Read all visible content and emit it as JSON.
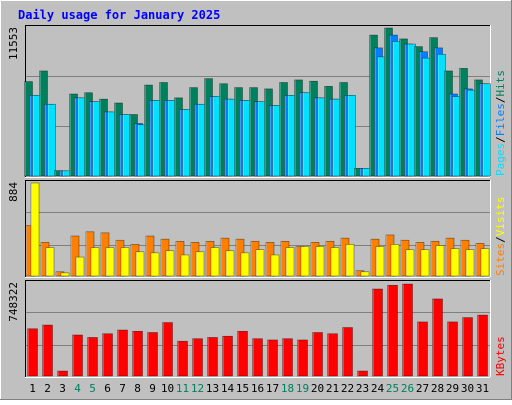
{
  "title": "Daily usage for January 2025",
  "colors": {
    "background": "#C0C0C0",
    "plot_bg": "#C0C0C0",
    "title": "#0000FF",
    "hits": "#00805C",
    "files": "#0080FF",
    "pages": "#00E0FF",
    "visits": "#FFFF00",
    "sites": "#FF8000",
    "kbytes": "#FF0000",
    "axis_label_default": "#000000",
    "axis_label_weekend": "#00805C"
  },
  "chart_data": [
    {
      "type": "bar",
      "name": "hits-files-pages",
      "scale_label": "11553",
      "ylim": [
        0,
        11553
      ],
      "categories": [
        "1",
        "2",
        "3",
        "4",
        "5",
        "6",
        "7",
        "8",
        "9",
        "10",
        "11",
        "12",
        "13",
        "14",
        "15",
        "16",
        "17",
        "18",
        "19",
        "20",
        "21",
        "22",
        "23",
        "24",
        "25",
        "26",
        "27",
        "28",
        "29",
        "30",
        "31"
      ],
      "weekend": [
        false,
        false,
        false,
        true,
        true,
        false,
        false,
        false,
        false,
        false,
        true,
        true,
        false,
        false,
        false,
        false,
        false,
        true,
        true,
        false,
        false,
        false,
        false,
        false,
        true,
        true,
        false,
        false,
        false,
        false,
        false
      ],
      "legend": [
        "Pages",
        "Files",
        "Hits"
      ],
      "series": [
        {
          "name": "Hits",
          "color_key": "hits",
          "values": [
            7370,
            8200,
            420,
            6400,
            6500,
            6000,
            5700,
            4800,
            7100,
            7300,
            6100,
            6900,
            7600,
            7200,
            6900,
            6900,
            6800,
            7300,
            7500,
            7400,
            7000,
            7300,
            600,
            11000,
            11553,
            10700,
            10100,
            10800,
            8200,
            8400,
            7500
          ]
        },
        {
          "name": "Files",
          "color_key": "files",
          "values": [
            6300,
            5600,
            400,
            6100,
            5800,
            5000,
            4800,
            4100,
            5900,
            5900,
            5200,
            5600,
            6200,
            6000,
            5900,
            5800,
            5500,
            6300,
            6500,
            6100,
            6000,
            6300,
            600,
            10000,
            11000,
            10300,
            9700,
            10000,
            6400,
            6800,
            7200
          ]
        },
        {
          "name": "Pages",
          "color_key": "pages",
          "values": [
            6300,
            5600,
            400,
            6100,
            5800,
            5000,
            4800,
            4000,
            5900,
            5900,
            5200,
            5600,
            6200,
            6000,
            5900,
            5800,
            5500,
            6300,
            6500,
            6100,
            6000,
            6300,
            600,
            9300,
            10500,
            10300,
            9200,
            9500,
            6200,
            6700,
            7200
          ]
        }
      ]
    },
    {
      "type": "bar",
      "name": "sites-visits",
      "scale_label": "884",
      "ylim": [
        0,
        884
      ],
      "legend": [
        "Sites",
        "Visits"
      ],
      "series": [
        {
          "name": "Sites",
          "color_key": "sites",
          "values": [
            480,
            320,
            40,
            380,
            420,
            410,
            340,
            300,
            380,
            350,
            330,
            320,
            330,
            360,
            350,
            330,
            320,
            330,
            280,
            320,
            330,
            360,
            50,
            350,
            390,
            340,
            320,
            330,
            360,
            340,
            310
          ]
        },
        {
          "name": "Visits",
          "color_key": "visits",
          "values": [
            884,
            270,
            30,
            180,
            270,
            270,
            270,
            230,
            220,
            240,
            200,
            230,
            270,
            240,
            220,
            250,
            200,
            270,
            280,
            280,
            270,
            300,
            40,
            280,
            300,
            250,
            250,
            290,
            260,
            250,
            260
          ]
        }
      ]
    },
    {
      "type": "bar",
      "name": "kbytes",
      "scale_label": "748322",
      "ylim": [
        0,
        748322
      ],
      "legend": [
        "KBytes"
      ],
      "series": [
        {
          "name": "KBytes",
          "color_key": "kbytes",
          "values": [
            380000,
            410000,
            40000,
            330000,
            310000,
            340000,
            370000,
            360000,
            350000,
            430000,
            280000,
            300000,
            310000,
            320000,
            360000,
            300000,
            290000,
            300000,
            290000,
            350000,
            340000,
            390000,
            40000,
            700000,
            730000,
            740000,
            435000,
            620000,
            435000,
            470000,
            490000
          ]
        }
      ]
    }
  ]
}
